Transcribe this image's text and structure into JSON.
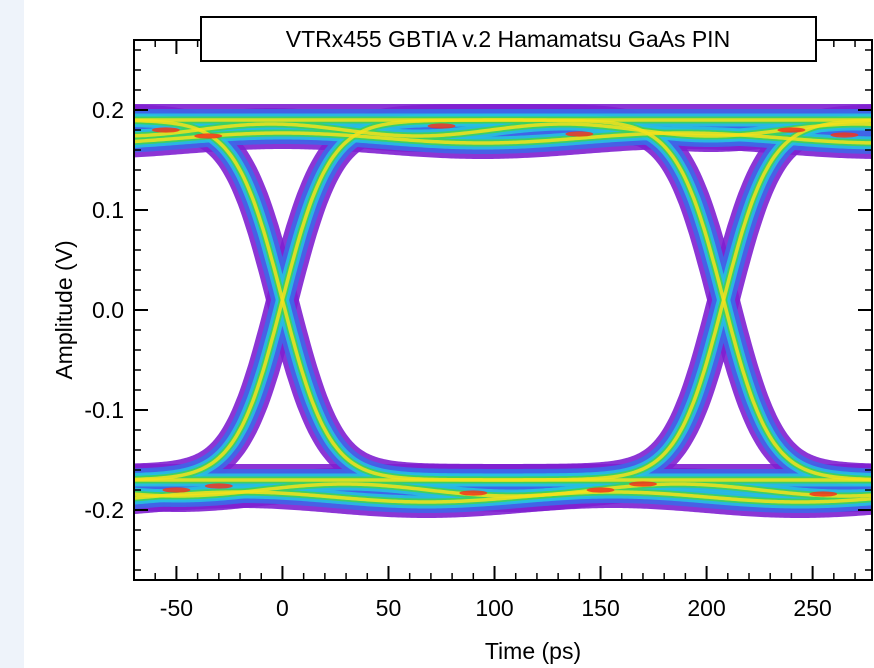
{
  "chart_data": {
    "type": "scatter",
    "subtype": "eye-diagram-density",
    "title": "VTRx455 GBTIA v.2 Hamamatsu GaAs PIN",
    "xlabel": "Time (ps)",
    "ylabel": "Amplitude (V)",
    "xlim": [
      -70,
      278
    ],
    "ylim": [
      -0.27,
      0.27
    ],
    "x_ticks": [
      -50,
      0,
      50,
      100,
      150,
      200,
      250
    ],
    "x_tick_labels": [
      "-50",
      "0",
      "50",
      "100",
      "150",
      "200",
      "250"
    ],
    "y_ticks": [
      0.2,
      0.1,
      0.0,
      -0.1,
      -0.2
    ],
    "y_tick_labels": [
      "0.2",
      "0.1",
      "0.0",
      "-0.1",
      "-0.2"
    ],
    "levels": {
      "high": 0.18,
      "low": -0.18
    },
    "crossings_ps": [
      0,
      208
    ],
    "crossing_amplitude": 0.02,
    "grid": false,
    "colors": {
      "density_low": "#7f1fd0",
      "density_mid_low": "#3f66e8",
      "density_mid": "#27c0e0",
      "density_mid_high": "#3ed25a",
      "density_high": "#f4e21c",
      "density_peak": "#f2351c",
      "frame": "#000000",
      "outer_background": "#eef3fa"
    }
  }
}
